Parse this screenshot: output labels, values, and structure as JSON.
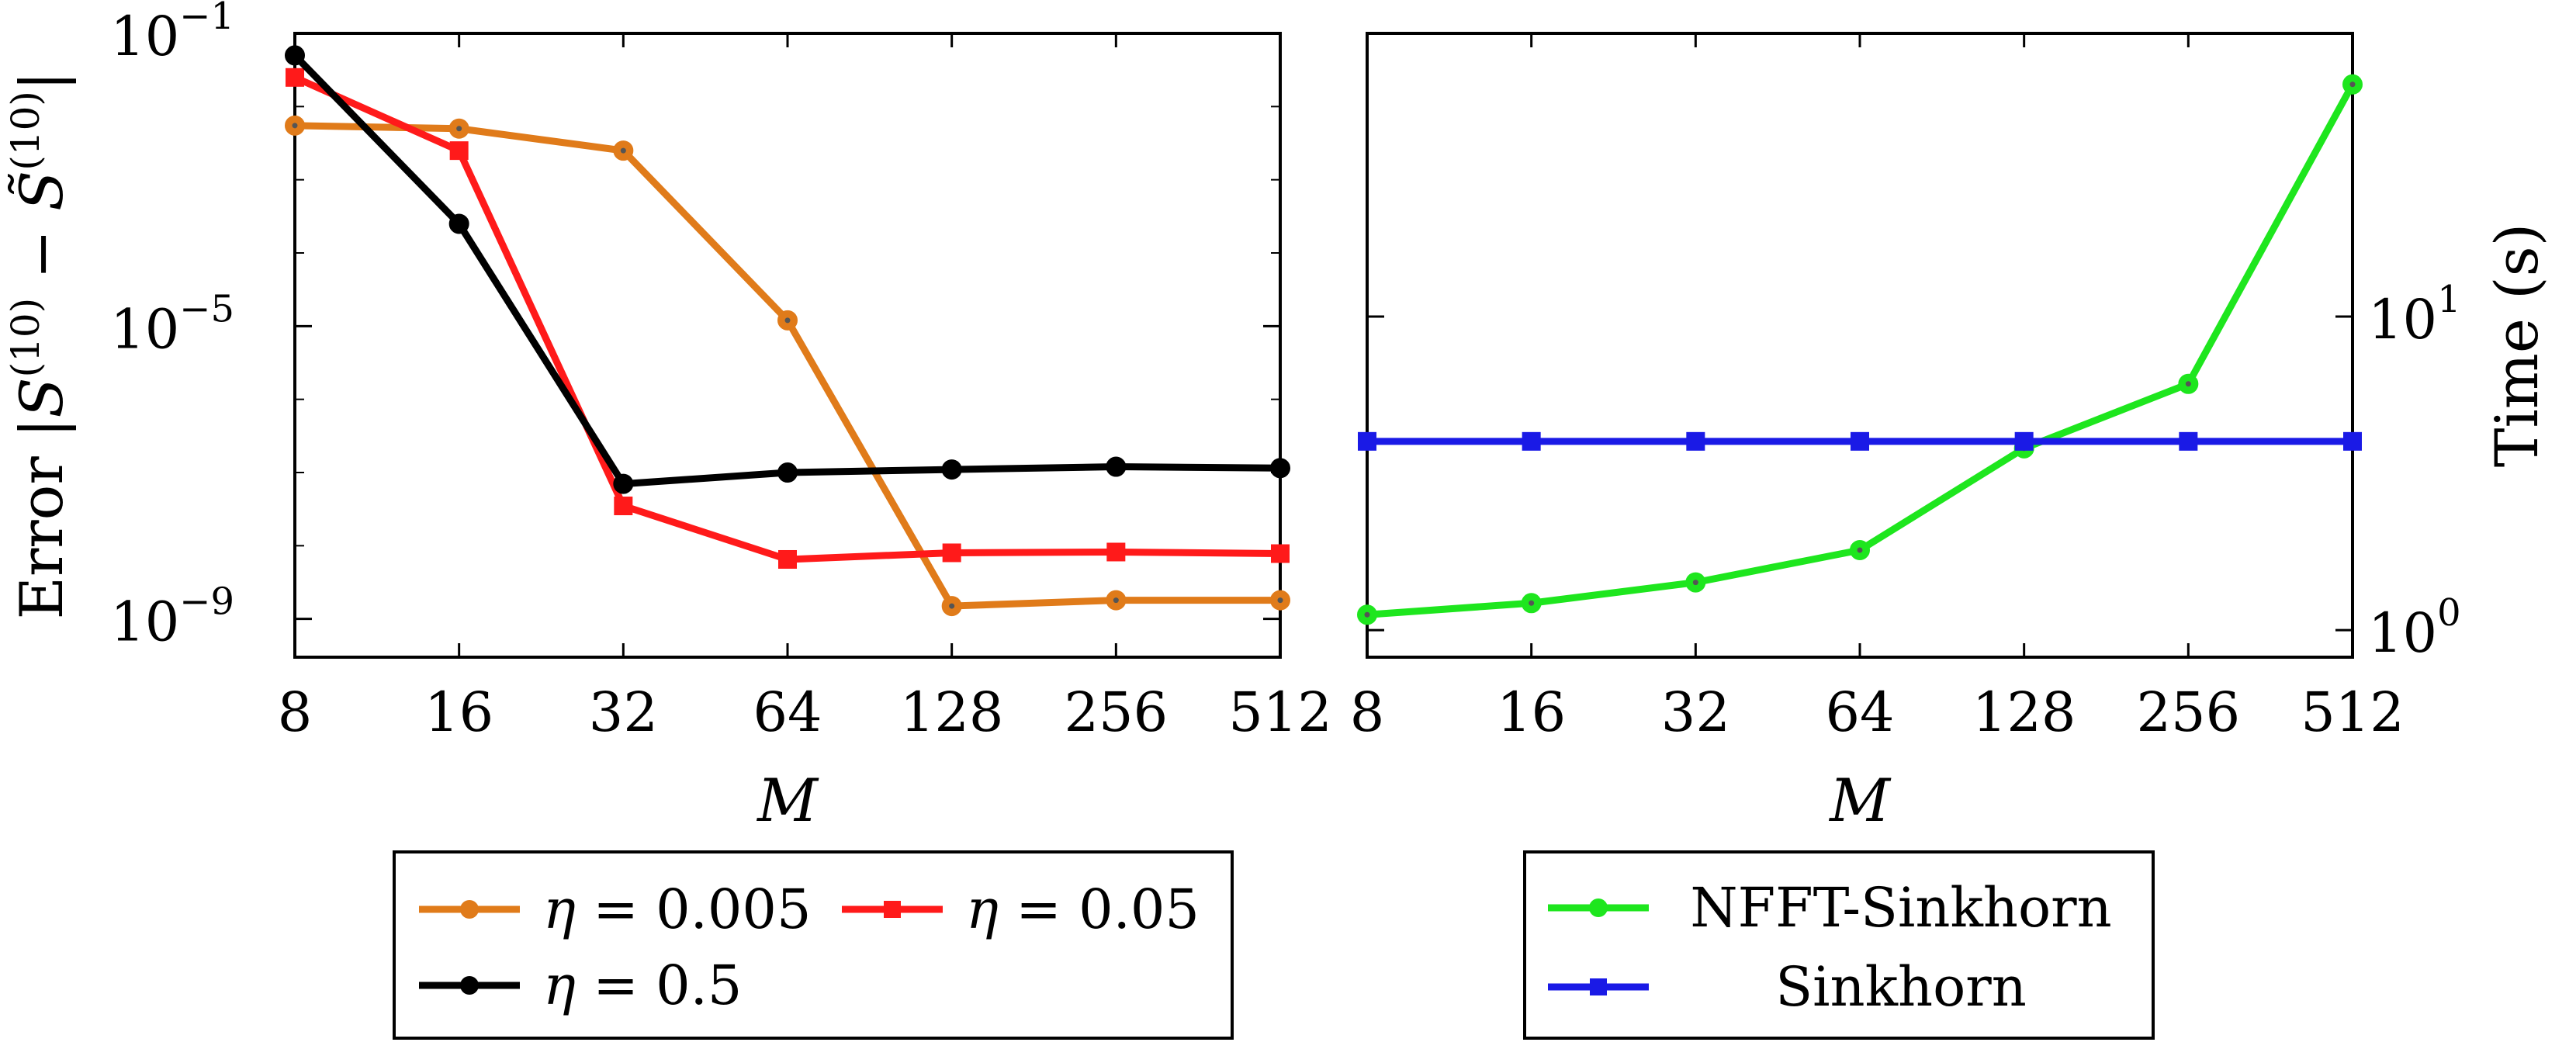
{
  "chart_data": [
    {
      "type": "line",
      "panel": "left",
      "xlabel": "M",
      "ylabel": "Error |S(10) − S̃(10)|",
      "yscale": "log",
      "ylim": [
        3e-10,
        0.1
      ],
      "categories": [
        "8",
        "16",
        "32",
        "64",
        "128",
        "256",
        "512"
      ],
      "y_ticks": [
        {
          "base": "10",
          "exp": "−1",
          "value": 0.1
        },
        {
          "base": "10",
          "exp": "−5",
          "value": 1e-05
        },
        {
          "base": "10",
          "exp": "−9",
          "value": 1e-09
        }
      ],
      "series": [
        {
          "name": "η = 0.005",
          "color": "#e07b1a",
          "marker": "circle",
          "values": [
            0.0055,
            0.005,
            0.0025,
            1.2e-05,
            1.5e-09,
            1.8e-09,
            1.8e-09
          ]
        },
        {
          "name": "η = 0.05",
          "color": "#ff1a1a",
          "marker": "square",
          "values": [
            0.025,
            0.0025,
            3.5e-08,
            6.5e-09,
            8e-09,
            8.2e-09,
            7.8e-09
          ]
        },
        {
          "name": "η = 0.5",
          "color": "#000000",
          "marker": "circle",
          "values": [
            0.05,
            0.00025,
            7e-08,
            1e-07,
            1.1e-07,
            1.2e-07,
            1.15e-07
          ]
        }
      ],
      "legend": [
        {
          "symbol": "η",
          "rest": "= 0.005",
          "color": "#e07b1a",
          "marker": "circle"
        },
        {
          "symbol": "η",
          "rest": "= 0.05",
          "color": "#ff1a1a",
          "marker": "square"
        },
        {
          "symbol": "η",
          "rest": "= 0.5",
          "color": "#000000",
          "marker": "circle"
        }
      ]
    },
    {
      "type": "line",
      "panel": "right",
      "xlabel": "M",
      "ylabel": "Time (s)",
      "yscale": "log",
      "ylim": [
        0.82,
        80
      ],
      "categories": [
        "8",
        "16",
        "32",
        "64",
        "128",
        "256",
        "512"
      ],
      "y_ticks": [
        {
          "base": "10",
          "exp": "0",
          "value": 1
        },
        {
          "base": "10",
          "exp": "1",
          "value": 10
        }
      ],
      "series": [
        {
          "name": "NFFT-Sinkhorn",
          "color": "#1ee61e",
          "marker": "circle",
          "values": [
            1.12,
            1.22,
            1.42,
            1.8,
            3.8,
            6.1,
            55
          ]
        },
        {
          "name": "Sinkhorn",
          "color": "#1a1ae6",
          "marker": "square",
          "values": [
            4.0,
            4.0,
            4.0,
            4.0,
            4.0,
            4.0,
            4.0
          ]
        }
      ],
      "legend": [
        {
          "label": "NFFT-Sinkhorn",
          "color": "#1ee61e",
          "marker": "circle"
        },
        {
          "label": "Sinkhorn",
          "color": "#1a1ae6",
          "marker": "square"
        }
      ]
    }
  ]
}
